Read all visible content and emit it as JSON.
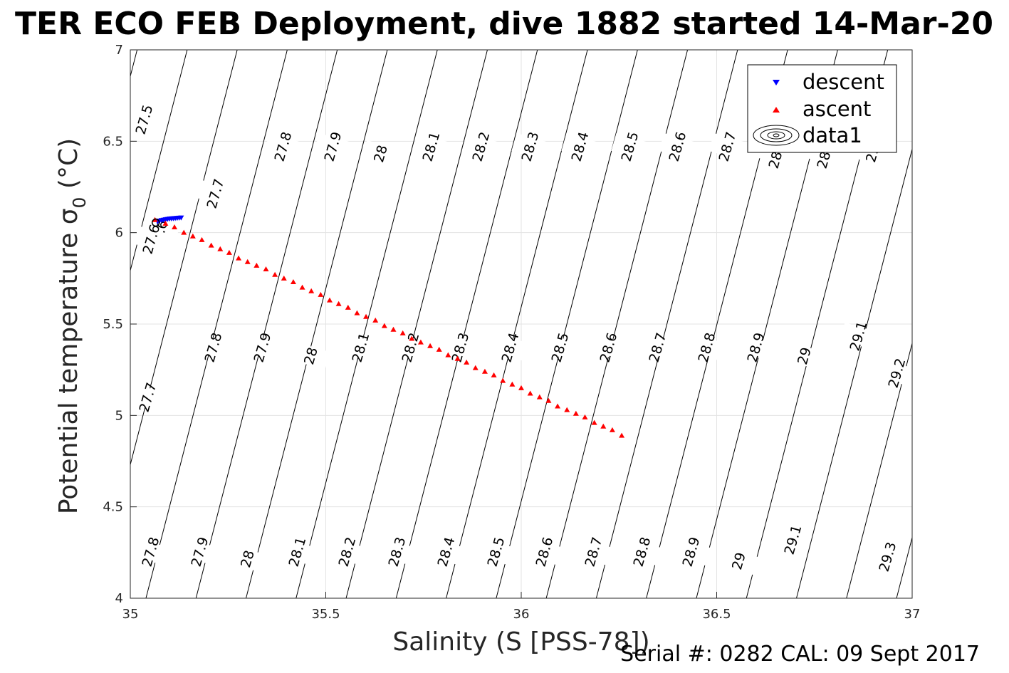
{
  "figure": {
    "title": "TER ECO FEB Deployment, dive 1882 started 14-Mar-20",
    "footer": "Serial #: 0282  CAL: 09 Sept 2017"
  },
  "chart_data": {
    "type": "scatter",
    "xlabel": "Salinity (S [PSS-78])",
    "ylabel_main": "Potential temperature ",
    "ylabel_sigma": "σ",
    "ylabel_sub": "0",
    "ylabel_unit": " (°C)",
    "xlim": [
      35,
      37
    ],
    "ylim": [
      4,
      7
    ],
    "xticks": [
      35,
      35.5,
      36,
      36.5,
      37
    ],
    "xtick_labels": [
      "35",
      "35.5",
      "36",
      "36.5",
      "37"
    ],
    "yticks": [
      4,
      4.5,
      5,
      5.5,
      6,
      6.5,
      7
    ],
    "ytick_labels": [
      "4",
      "4.5",
      "5",
      "5.5",
      "6",
      "6.5",
      "7"
    ],
    "grid": true,
    "legend_position": "top-right",
    "series": [
      {
        "name": "descent",
        "marker": "triangle-down",
        "color": "#0000ff",
        "x": [
          35.07,
          35.075,
          35.08,
          35.085,
          35.09,
          35.095,
          35.1,
          35.105,
          35.11,
          35.115,
          35.12,
          35.125,
          35.13
        ],
        "y": [
          6.06,
          6.065,
          6.068,
          6.07,
          6.072,
          6.074,
          6.076,
          6.077,
          6.078,
          6.079,
          6.08,
          6.081,
          6.082
        ]
      },
      {
        "name": "ascent",
        "marker": "triangle-up",
        "color": "#ff0000",
        "x": [
          35.063,
          35.09,
          35.113,
          35.137,
          35.16,
          35.183,
          35.207,
          35.23,
          35.253,
          35.277,
          35.3,
          35.323,
          35.347,
          35.37,
          35.393,
          35.417,
          35.44,
          35.463,
          35.487,
          35.51,
          35.533,
          35.557,
          35.58,
          35.603,
          35.627,
          35.65,
          35.673,
          35.697,
          35.72,
          35.743,
          35.767,
          35.79,
          35.813,
          35.837,
          35.86,
          35.883,
          35.907,
          35.93,
          35.953,
          35.977,
          36.0,
          36.023,
          36.047,
          36.07,
          36.093,
          36.117,
          36.14,
          36.163,
          36.187,
          36.21,
          36.233,
          36.257
        ],
        "y": [
          6.07,
          6.05,
          6.03,
          6.0,
          5.98,
          5.96,
          5.93,
          5.91,
          5.89,
          5.86,
          5.84,
          5.82,
          5.8,
          5.77,
          5.75,
          5.73,
          5.7,
          5.68,
          5.66,
          5.63,
          5.61,
          5.59,
          5.56,
          5.54,
          5.52,
          5.49,
          5.47,
          5.45,
          5.42,
          5.4,
          5.38,
          5.36,
          5.33,
          5.31,
          5.29,
          5.26,
          5.24,
          5.22,
          5.19,
          5.17,
          5.15,
          5.12,
          5.1,
          5.08,
          5.05,
          5.03,
          5.01,
          4.99,
          4.96,
          4.94,
          4.92,
          4.89
        ]
      },
      {
        "name": "data1",
        "marker": "circle",
        "color": "#000000",
        "x": [
          35.065
        ],
        "y": [
          6.055
        ]
      }
    ],
    "contour_labels": {
      "top": [
        "27.5",
        "27.6",
        "27.7",
        "27.8",
        "27.9",
        "28",
        "28.1",
        "28.2",
        "28.3",
        "28.4",
        "28.5",
        "28.6",
        "28.7",
        "28.8",
        "28.9",
        "29"
      ],
      "middle": [
        "27.6",
        "27.7",
        "27.8",
        "27.9",
        "28",
        "28.1",
        "28.2",
        "28.3",
        "28.4",
        "28.5",
        "28.6",
        "28.7",
        "28.8",
        "28.9",
        "29",
        "29.1",
        "29.2"
      ],
      "bottom": [
        "27.8",
        "27.9",
        "28",
        "28.1",
        "28.2",
        "28.3",
        "28.4",
        "28.5",
        "28.6",
        "28.7",
        "28.8",
        "28.9",
        "29",
        "29.1",
        "29.3"
      ]
    }
  }
}
